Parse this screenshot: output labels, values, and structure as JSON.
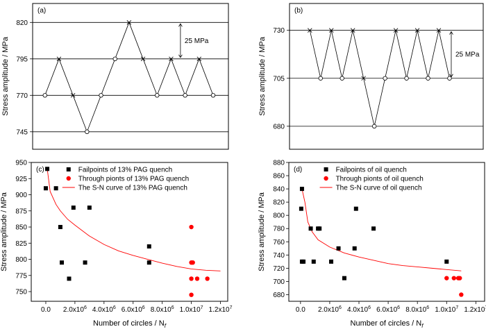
{
  "chart_data": [
    {
      "panel": "(a)",
      "type": "line",
      "ylabel": "Stress amplitude / MPa",
      "yticks": [
        820,
        795,
        770,
        745
      ],
      "ylim": [
        733,
        833
      ],
      "grid_lines": [
        820,
        795,
        770,
        745
      ],
      "annotation": "25 MPa",
      "annotation_span": [
        795,
        820
      ],
      "sequence": [
        {
          "y": 770,
          "marker": "o"
        },
        {
          "y": 795,
          "marker": "x"
        },
        {
          "y": 770,
          "marker": "x"
        },
        {
          "y": 745,
          "marker": "o"
        },
        {
          "y": 770,
          "marker": "o"
        },
        {
          "y": 795,
          "marker": "o"
        },
        {
          "y": 820,
          "marker": "x"
        },
        {
          "y": 795,
          "marker": "x"
        },
        {
          "y": 770,
          "marker": "o"
        },
        {
          "y": 795,
          "marker": "x"
        },
        {
          "y": 770,
          "marker": "o"
        },
        {
          "y": 795,
          "marker": "x"
        },
        {
          "y": 770,
          "marker": "o"
        }
      ]
    },
    {
      "panel": "(b)",
      "type": "line",
      "ylabel": "Stress amplitude / MPa",
      "yticks": [
        730,
        705,
        680
      ],
      "ylim": [
        668,
        744
      ],
      "grid_lines": [
        730,
        705,
        680
      ],
      "annotation": "25 MPa",
      "annotation_span": [
        705,
        730
      ],
      "sequence": [
        {
          "y": 730,
          "marker": "x"
        },
        {
          "y": 705,
          "marker": "o"
        },
        {
          "y": 730,
          "marker": "x"
        },
        {
          "y": 705,
          "marker": "o"
        },
        {
          "y": 730,
          "marker": "x"
        },
        {
          "y": 705,
          "marker": "x"
        },
        {
          "y": 680,
          "marker": "o"
        },
        {
          "y": 705,
          "marker": "o"
        },
        {
          "y": 730,
          "marker": "x"
        },
        {
          "y": 705,
          "marker": "o"
        },
        {
          "y": 730,
          "marker": "x"
        },
        {
          "y": 705,
          "marker": "o"
        },
        {
          "y": 730,
          "marker": "x"
        },
        {
          "y": 705,
          "marker": "o"
        }
      ]
    },
    {
      "panel": "(c)",
      "type": "scatter",
      "xlabel": "Number of circles / N",
      "xlabel_subscript": "f",
      "ylabel": "Stress amplitude / MPa",
      "xlim": [
        -1000000,
        12500000
      ],
      "ylim": [
        735,
        950
      ],
      "xticks": [
        {
          "value": 0,
          "label": "0.0"
        },
        {
          "value": 2000000,
          "label": "2.0x10",
          "exp": "6"
        },
        {
          "value": 4000000,
          "label": "4.0x10",
          "exp": "6"
        },
        {
          "value": 6000000,
          "label": "6.0x10",
          "exp": "6"
        },
        {
          "value": 8000000,
          "label": "8.0x10",
          "exp": "6"
        },
        {
          "value": 10000000,
          "label": "1.0x10",
          "exp": "7"
        },
        {
          "value": 12000000,
          "label": "1.2x10",
          "exp": "7"
        }
      ],
      "yticks": [
        750,
        775,
        800,
        825,
        850,
        875,
        900,
        925,
        950
      ],
      "legend": [
        {
          "label": "Failpoints of  13% PAG quench",
          "marker": "square",
          "color": "#000000"
        },
        {
          "label": "Through pionts of  13% PAG quench",
          "marker": "circle",
          "color": "#ff0000"
        },
        {
          "label": "The S-N curve of 13% PAG quench",
          "marker": "line",
          "color": "#ff0000"
        }
      ],
      "series": [
        {
          "name": "Failpoints of  13% PAG quench",
          "marker": "square",
          "points": [
            [
              0,
              910
            ],
            [
              100000,
              940
            ],
            [
              700000,
              910
            ],
            [
              1000000,
              850
            ],
            [
              1100000,
              795
            ],
            [
              1600000,
              770
            ],
            [
              1900000,
              880
            ],
            [
              2700000,
              795
            ],
            [
              3000000,
              880
            ],
            [
              7100000,
              820
            ],
            [
              7100000,
              795
            ]
          ]
        },
        {
          "name": "Through pionts of  13% PAG quench",
          "marker": "circle",
          "points": [
            [
              10000000,
              850
            ],
            [
              10000000,
              795
            ],
            [
              10100000,
              795
            ],
            [
              10000000,
              770
            ],
            [
              10000000,
              745
            ],
            [
              10400000,
              770
            ],
            [
              11100000,
              770
            ]
          ]
        },
        {
          "name": "The S-N curve of 13% PAG quench",
          "marker": "line",
          "points": [
            [
              100000,
              940
            ],
            [
              300000,
              905
            ],
            [
              700000,
              885
            ],
            [
              1000000,
              875
            ],
            [
              1500000,
              862
            ],
            [
              2000000,
              853
            ],
            [
              3000000,
              836
            ],
            [
              4000000,
              823
            ],
            [
              5000000,
              813
            ],
            [
              6000000,
              806
            ],
            [
              7000000,
              800
            ],
            [
              8000000,
              794
            ],
            [
              9000000,
              789
            ],
            [
              10000000,
              785
            ],
            [
              11000000,
              783
            ],
            [
              12000000,
              782
            ]
          ]
        }
      ]
    },
    {
      "panel": "(d)",
      "type": "scatter",
      "xlabel": "Number of circles / N",
      "xlabel_subscript": "f",
      "ylabel": "Stress amplitude / MPa",
      "xlim": [
        -800000,
        12600000
      ],
      "ylim": [
        670,
        880
      ],
      "xticks": [
        {
          "value": 0,
          "label": "0.0"
        },
        {
          "value": 2000000,
          "label": "2.0x10",
          "exp": "6"
        },
        {
          "value": 4000000,
          "label": "4.0x10",
          "exp": "6"
        },
        {
          "value": 6000000,
          "label": "6.0x10",
          "exp": "6"
        },
        {
          "value": 8000000,
          "label": "8.0x10",
          "exp": "6"
        },
        {
          "value": 10000000,
          "label": "1.0x10",
          "exp": "7"
        },
        {
          "value": 12000000,
          "label": "1.2x10",
          "exp": "7"
        }
      ],
      "yticks": [
        680,
        700,
        720,
        740,
        760,
        780,
        800,
        820,
        840,
        860,
        880
      ],
      "legend": [
        {
          "label": "Failpoints of  oil quench",
          "marker": "square",
          "color": "#000000"
        },
        {
          "label": "Through pionts of  oil quench",
          "marker": "circle",
          "color": "#ff0000"
        },
        {
          "label": "The S-N curve of oil quench",
          "marker": "line",
          "color": "#ff0000"
        }
      ],
      "series": [
        {
          "name": "Failpoints of  oil quench",
          "marker": "square",
          "points": [
            [
              50000,
              810
            ],
            [
              100000,
              840
            ],
            [
              100000,
              730
            ],
            [
              200000,
              730
            ],
            [
              700000,
              780
            ],
            [
              900000,
              730
            ],
            [
              1200000,
              780
            ],
            [
              1300000,
              780
            ],
            [
              2100000,
              730
            ],
            [
              2600000,
              750
            ],
            [
              3000000,
              705
            ],
            [
              3700000,
              750
            ],
            [
              3800000,
              810
            ],
            [
              5000000,
              780
            ],
            [
              10000000,
              730
            ]
          ]
        },
        {
          "name": "Through pionts of  oil quench",
          "marker": "circle",
          "points": [
            [
              10000000,
              705
            ],
            [
              10500000,
              705
            ],
            [
              10800000,
              705
            ],
            [
              10900000,
              705
            ],
            [
              11000000,
              680
            ]
          ]
        },
        {
          "name": "The S-N curve of oil quench",
          "marker": "line",
          "points": [
            [
              100000,
              840
            ],
            [
              300000,
              820
            ],
            [
              500000,
              790
            ],
            [
              800000,
              775
            ],
            [
              1200000,
              763
            ],
            [
              2000000,
              752
            ],
            [
              3000000,
              743
            ],
            [
              4000000,
              737
            ],
            [
              5000000,
              732
            ],
            [
              6000000,
              727
            ],
            [
              7000000,
              724
            ],
            [
              8000000,
              722
            ],
            [
              9000000,
              720
            ],
            [
              10000000,
              718
            ],
            [
              11000000,
              716
            ]
          ]
        }
      ]
    }
  ]
}
